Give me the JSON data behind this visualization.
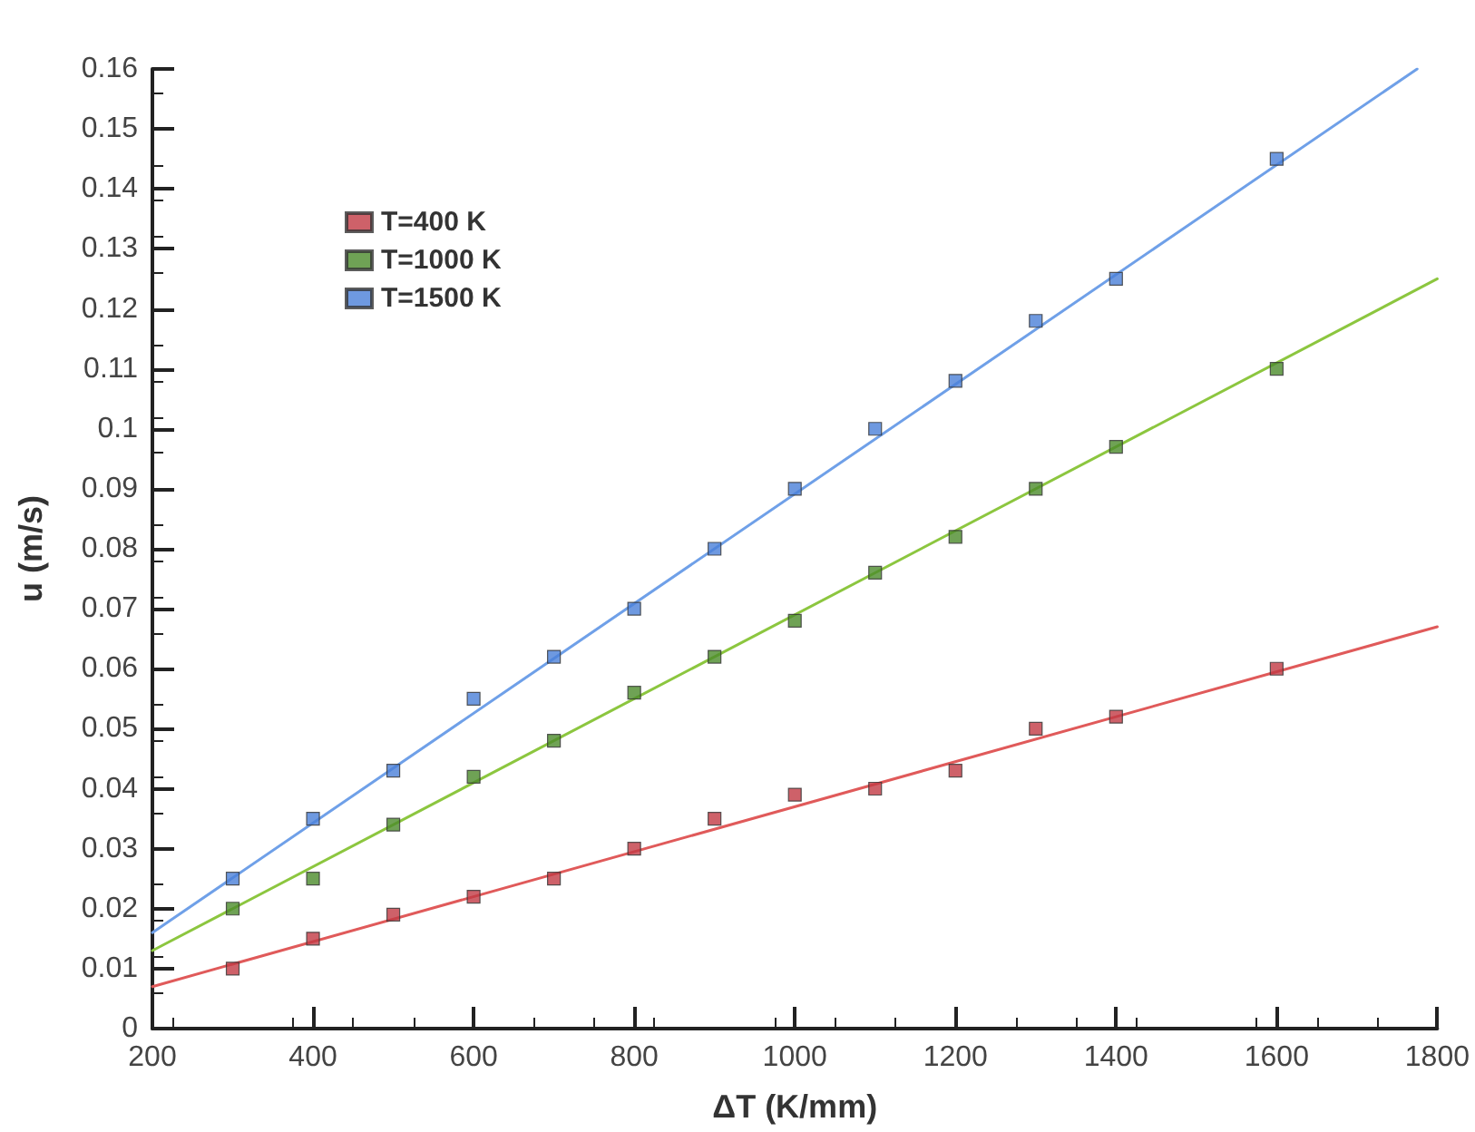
{
  "chart_data": {
    "type": "scatter",
    "xlabel": "ΔT (K/mm)",
    "ylabel": "u (m/s)",
    "xlim": [
      200,
      1800
    ],
    "xticks": [
      200,
      400,
      600,
      800,
      1000,
      1200,
      1400,
      1600,
      1800
    ],
    "ylim": [
      0,
      0.16
    ],
    "yticks": [
      0,
      0.01,
      0.02,
      0.03,
      0.04,
      0.05,
      0.06,
      0.07,
      0.08,
      0.09,
      0.1,
      0.11,
      0.12,
      0.13,
      0.14,
      0.15,
      0.16
    ],
    "grid": false,
    "legend": "top left",
    "marker": "square",
    "x": [
      300,
      400,
      500,
      600,
      700,
      800,
      900,
      1000,
      1100,
      1200,
      1300,
      1400,
      1600
    ],
    "series": [
      {
        "name": "T=400 K",
        "color": "#c23a44",
        "values": [
          0.01,
          0.015,
          0.019,
          0.022,
          0.025,
          0.03,
          0.035,
          0.039,
          0.04,
          0.043,
          0.05,
          0.052,
          0.06
        ]
      },
      {
        "name": "T=1000 K",
        "color": "#4b8b2b",
        "values": [
          0.02,
          0.025,
          0.034,
          0.042,
          0.048,
          0.056,
          0.062,
          0.068,
          0.076,
          0.082,
          0.09,
          0.097,
          0.11
        ]
      },
      {
        "name": "T=1500 K",
        "color": "#4a7fd8",
        "values": [
          0.025,
          0.035,
          0.043,
          0.055,
          0.062,
          0.07,
          0.08,
          0.09,
          0.1,
          0.108,
          0.118,
          0.125,
          0.145
        ]
      },
      {
        "type": "line",
        "color": "#e05a5a",
        "marker": "none",
        "line_style": "solid",
        "x": [
          200,
          1800
        ],
        "values": [
          0.007,
          0.067
        ]
      },
      {
        "type": "line",
        "color": "#8cc63f",
        "marker": "none",
        "line_style": "solid",
        "x": [
          200,
          1800
        ],
        "values": [
          0.013,
          0.125
        ]
      },
      {
        "type": "line",
        "color": "#6fa0e8",
        "marker": "none",
        "line_style": "solid",
        "x": [
          200,
          1775
        ],
        "values": [
          0.016,
          0.16
        ]
      }
    ]
  }
}
